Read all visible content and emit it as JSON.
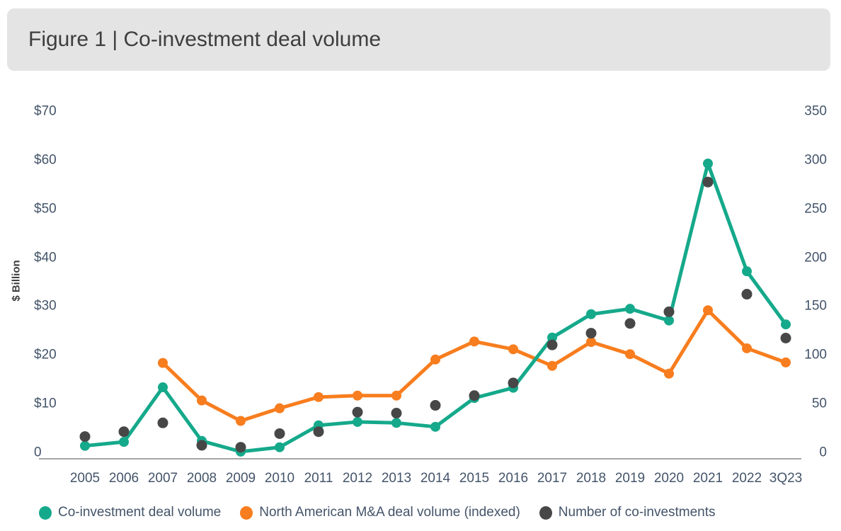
{
  "header": {
    "title": "Figure 1 | Co-investment deal volume"
  },
  "chart_data": {
    "type": "line",
    "title": "Figure 1 | Co-investment deal volume",
    "categories": [
      "2005",
      "2006",
      "2007",
      "2008",
      "2009",
      "2010",
      "2011",
      "2012",
      "2013",
      "2014",
      "2015",
      "2016",
      "2017",
      "2018",
      "2019",
      "2020",
      "2021",
      "2022",
      "3Q23"
    ],
    "series": [
      {
        "name": "Co-investment deal volume",
        "type": "line",
        "axis": "left",
        "color": "#15a98b",
        "values": [
          1.5,
          2.3,
          13.5,
          2.5,
          0.3,
          1.2,
          5.7,
          6.4,
          6.2,
          5.4,
          11.3,
          13.4,
          23.7,
          28.5,
          29.6,
          27.2,
          59.4,
          37.3,
          26.4
        ]
      },
      {
        "name": "North American M&A deal volume (indexed)",
        "type": "line",
        "axis": "left",
        "color": "#f87d1e",
        "values": [
          null,
          null,
          18.5,
          10.8,
          6.6,
          9.2,
          11.5,
          11.8,
          11.8,
          19.2,
          22.9,
          21.3,
          17.9,
          22.8,
          20.3,
          16.3,
          29.3,
          21.5,
          18.6
        ]
      },
      {
        "name": "Number of co-investments",
        "type": "scatter",
        "axis": "right",
        "color": "#474747",
        "values": [
          17,
          22,
          31,
          8,
          6,
          20,
          22,
          42,
          41,
          49,
          59,
          72,
          111,
          123,
          133,
          145,
          278,
          163,
          118
        ]
      }
    ],
    "y_left": {
      "title": "$ Billion",
      "min": 0,
      "max": 70,
      "ticks": [
        {
          "label": "$70",
          "value": 70
        },
        {
          "label": "$60",
          "value": 60
        },
        {
          "label": "$50",
          "value": 50
        },
        {
          "label": "$40",
          "value": 40
        },
        {
          "label": "$30",
          "value": 30
        },
        {
          "label": "$20",
          "value": 20
        },
        {
          "label": "$10",
          "value": 10
        },
        {
          "label": "0",
          "value": 0
        }
      ]
    },
    "y_right": {
      "title": "",
      "min": 0,
      "max": 350,
      "ticks": [
        {
          "label": "350",
          "value": 350
        },
        {
          "label": "300",
          "value": 300
        },
        {
          "label": "250",
          "value": 250
        },
        {
          "label": "200",
          "value": 200
        },
        {
          "label": "150",
          "value": 150
        },
        {
          "label": "100",
          "value": 100
        },
        {
          "label": "50",
          "value": 50
        },
        {
          "label": "0",
          "value": 0
        }
      ]
    },
    "grid": false,
    "legend_position": "bottom",
    "colors": {
      "title_bar_bg": "#e4e4e4",
      "title_text": "#3e3e3e",
      "axis_text": "#44546a",
      "axis_line": "#a6a6a6"
    }
  }
}
